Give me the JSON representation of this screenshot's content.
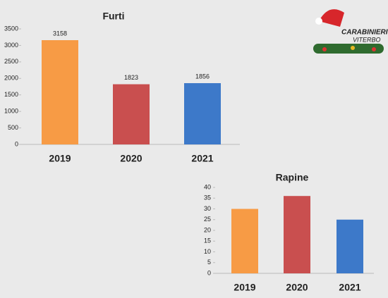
{
  "chart_data": [
    {
      "type": "bar",
      "title": "Furti",
      "categories": [
        "2019",
        "2020",
        "2021"
      ],
      "values": [
        3158,
        1823,
        1856
      ],
      "colors": [
        "#f79b45",
        "#c94f4f",
        "#3d79c9"
      ],
      "data_labels": true,
      "ylim": [
        0,
        3500
      ],
      "yticks": [
        0,
        500,
        1000,
        1500,
        2000,
        2500,
        3000,
        3500
      ]
    },
    {
      "type": "bar",
      "title": "Rapine",
      "categories": [
        "2019",
        "2020",
        "2021"
      ],
      "values": [
        30,
        36,
        25
      ],
      "colors": [
        "#f79b45",
        "#c94f4f",
        "#3d79c9"
      ],
      "data_labels": false,
      "ylim": [
        0,
        40
      ],
      "yticks": [
        0,
        5,
        10,
        15,
        20,
        25,
        30,
        35,
        40
      ]
    }
  ],
  "logo": {
    "line1": "CARABINIERI",
    "line2": "VITERBO"
  }
}
